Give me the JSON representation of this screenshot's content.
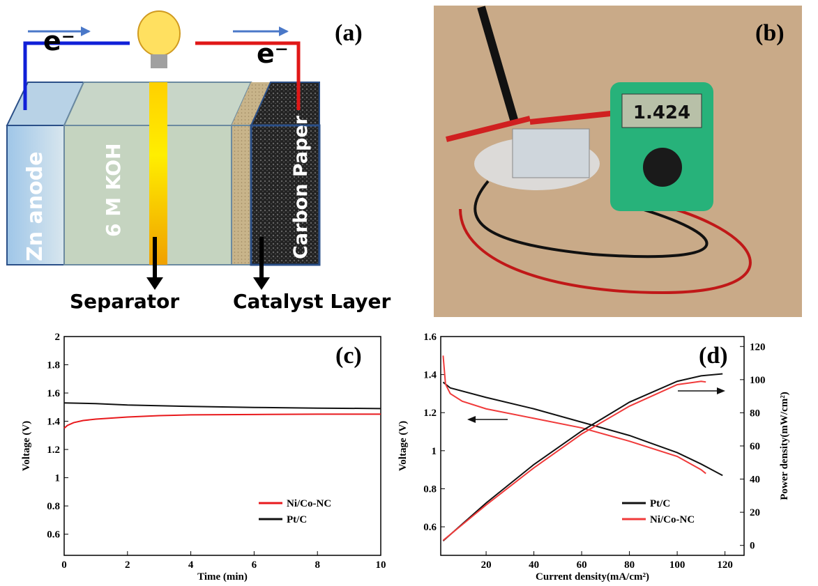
{
  "diagram": {
    "panel_label": "(a)",
    "electron_left": "e⁻",
    "electron_right": "e⁻",
    "zn_anode": "Zn anode",
    "electrolyte": "6 M KOH",
    "carbon_paper": "Carbon Paper",
    "separator": "Separator",
    "catalyst_layer": "Catalyst Layer"
  },
  "photo": {
    "panel_label": "(b)",
    "meter_reading": "1.424"
  },
  "chart_data": [
    {
      "type": "line",
      "panel_label": "(c)",
      "xlabel": "Time (min)",
      "ylabel": "Voltage (V)",
      "xlim": [
        0,
        10
      ],
      "xticks": [
        0,
        2,
        4,
        6,
        8,
        10
      ],
      "ylim": [
        0.45,
        2.0
      ],
      "yticks": [
        0.6,
        0.8,
        1.0,
        1.2,
        1.4,
        1.6,
        1.8,
        2.0
      ],
      "legend": "lower right",
      "series": [
        {
          "name": "Ni/Co-NC",
          "color": "#e8191c",
          "x": [
            0,
            0.1,
            0.3,
            0.6,
            1,
            2,
            3,
            4,
            6,
            8,
            10
          ],
          "values": [
            1.35,
            1.37,
            1.39,
            1.405,
            1.415,
            1.43,
            1.44,
            1.445,
            1.448,
            1.45,
            1.45
          ]
        },
        {
          "name": "Pt/C",
          "color": "#111111",
          "x": [
            0,
            1,
            2,
            4,
            6,
            8,
            10
          ],
          "values": [
            1.53,
            1.525,
            1.515,
            1.505,
            1.498,
            1.493,
            1.49
          ]
        }
      ]
    },
    {
      "type": "line",
      "panel_label": "(d)",
      "xlabel": "Current density(mA/cm²)",
      "ylabel": "Voltage (V)",
      "y2label": "Power density(mW/cm²)",
      "xlim": [
        1,
        128
      ],
      "xticks": [
        20,
        40,
        60,
        80,
        100,
        120
      ],
      "ylim": [
        0.45,
        1.6
      ],
      "yticks": [
        0.6,
        0.8,
        1.0,
        1.2,
        1.4,
        1.6
      ],
      "y2lim": [
        -6,
        126
      ],
      "y2ticks": [
        0,
        20,
        40,
        60,
        80,
        100,
        120
      ],
      "legend": "lower right",
      "series": [
        {
          "name": "Pt/C",
          "color": "#111111",
          "x": [
            2,
            5,
            20,
            40,
            60,
            80,
            100,
            110,
            119
          ],
          "values": [
            1.36,
            1.33,
            1.28,
            1.22,
            1.15,
            1.08,
            0.99,
            0.93,
            0.87
          ]
        },
        {
          "name": "Ni/Co-NC",
          "color": "#f03a3a",
          "x": [
            2,
            3,
            5,
            10,
            20,
            40,
            60,
            80,
            100,
            110,
            112
          ],
          "values": [
            1.5,
            1.35,
            1.3,
            1.26,
            1.22,
            1.17,
            1.12,
            1.05,
            0.97,
            0.9,
            0.88
          ]
        },
        {
          "name": "Pt/C",
          "color": "#111111",
          "axis": "y2",
          "x": [
            2,
            20,
            40,
            60,
            80,
            100,
            110,
            119
          ],
          "values": [
            2.7,
            25.6,
            48.8,
            69,
            86.4,
            99,
            102.3,
            103.5
          ]
        },
        {
          "name": "Ni/Co-NC",
          "color": "#f03a3a",
          "axis": "y2",
          "x": [
            2,
            20,
            40,
            60,
            80,
            100,
            110,
            112
          ],
          "values": [
            3,
            24.4,
            46.8,
            67.2,
            84,
            97,
            99,
            98.6
          ]
        }
      ]
    }
  ]
}
